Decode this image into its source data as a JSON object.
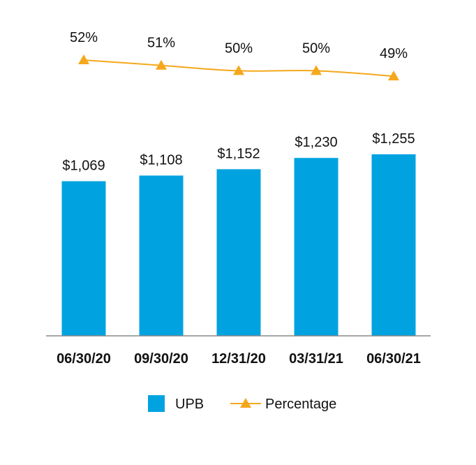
{
  "chart_data": {
    "type": "bar",
    "categories": [
      "06/30/20",
      "09/30/20",
      "12/31/20",
      "03/31/21",
      "06/30/21"
    ],
    "series": [
      {
        "name": "UPB",
        "type": "bar",
        "values": [
          1069,
          1108,
          1152,
          1230,
          1255
        ],
        "labels": [
          "$1,069",
          "$1,108",
          "$1,152",
          "$1,230",
          "$1,255"
        ],
        "color": "#00a3e0"
      },
      {
        "name": "Percentage",
        "type": "line",
        "marker": "triangle",
        "values": [
          52,
          51,
          50,
          50,
          49
        ],
        "labels": [
          "52%",
          "51%",
          "50%",
          "50%",
          "49%"
        ],
        "color": "#f5a81c"
      }
    ],
    "legend_position": "bottom-center",
    "grid": false,
    "bar_ylim": [
      0,
      1300
    ],
    "line_ylim": [
      40,
      60
    ]
  }
}
